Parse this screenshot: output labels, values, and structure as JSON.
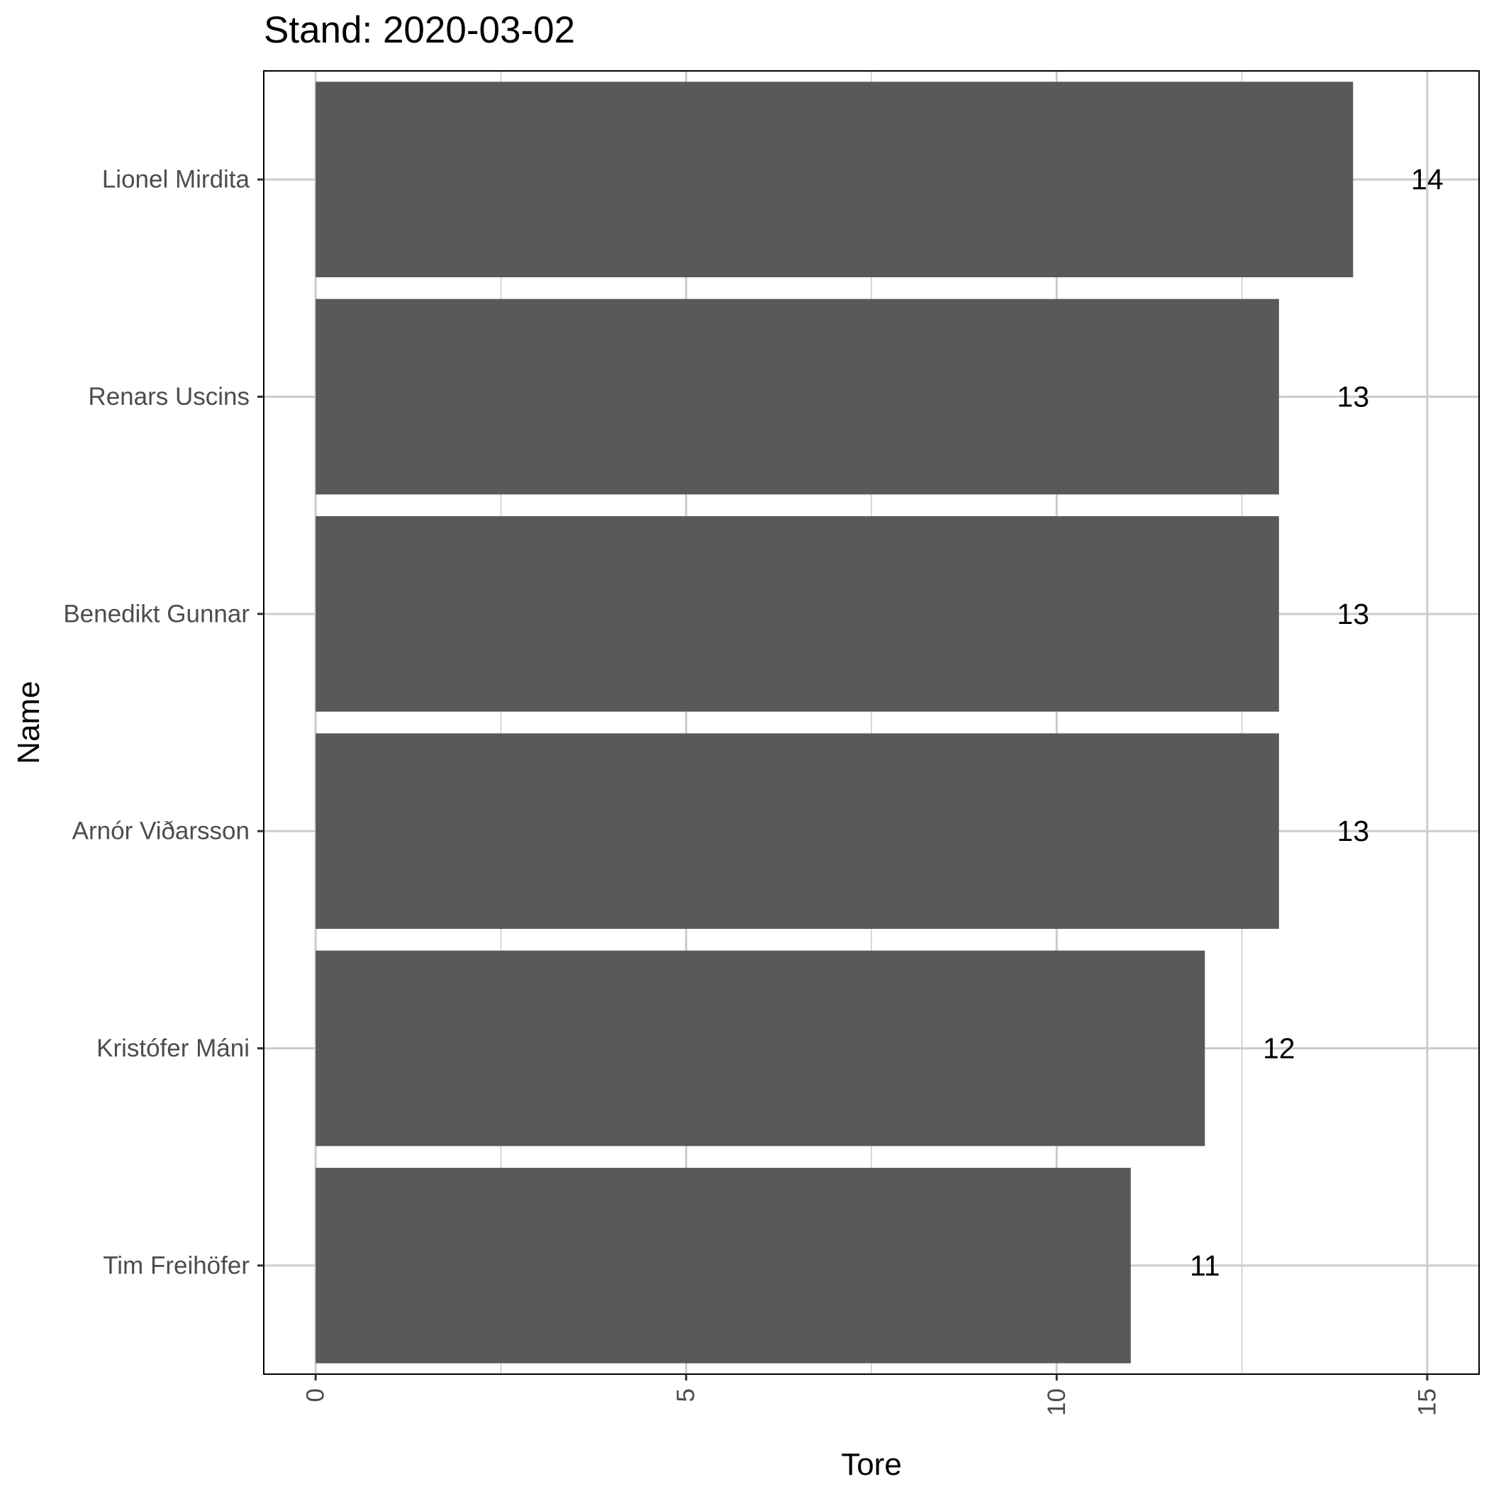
{
  "chart_data": {
    "type": "bar",
    "orientation": "horizontal",
    "title": "Stand: 2020-03-02",
    "xlabel": "Tore",
    "ylabel": "Name",
    "categories": [
      "Lionel Mirdita",
      "Renars Uscins",
      "Benedikt Gunnar",
      "Arnór Viðarsson",
      "Kristófer Máni",
      "Tim Freihöfer"
    ],
    "values": [
      14,
      13,
      13,
      13,
      12,
      11
    ],
    "data_labels": [
      "14",
      "13",
      "13",
      "13",
      "12",
      "11"
    ],
    "xlim": [
      -0.7,
      15.7
    ],
    "x_ticks": [
      0,
      5,
      10,
      15
    ],
    "x_tick_labels": [
      "0",
      "5",
      "10",
      "15"
    ],
    "x_tick_label_rotation": "vertical",
    "grid": true,
    "bar_color": "#595959",
    "grid_color": "#cccccc",
    "panel_border_color": "#000000"
  }
}
